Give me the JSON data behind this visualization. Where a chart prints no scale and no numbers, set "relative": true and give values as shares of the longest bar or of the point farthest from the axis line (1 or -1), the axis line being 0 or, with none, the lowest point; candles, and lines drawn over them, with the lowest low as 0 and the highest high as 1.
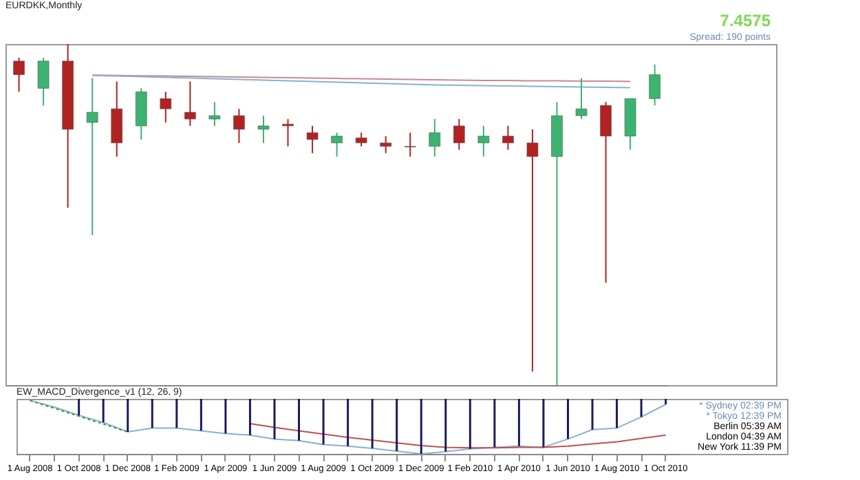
{
  "chart_data": [
    {
      "type": "candlestick",
      "title": "EURDKK,Monthly",
      "annotations": [
        "7.4575",
        "Spread: 190 points"
      ],
      "relative": true,
      "tick_labels": false,
      "categories": [
        null,
        null,
        null,
        null,
        null,
        null,
        null,
        null,
        null,
        null,
        null,
        null,
        null,
        null,
        null,
        null,
        null,
        null,
        null,
        null,
        null,
        null,
        null,
        null,
        null,
        null,
        null
      ],
      "ohlc": [
        [
          0.95,
          0.96,
          0.86,
          0.91
        ],
        [
          0.87,
          0.96,
          0.82,
          0.95
        ],
        [
          0.95,
          1,
          0.52,
          0.75
        ],
        [
          0.77,
          0.9,
          0.44,
          0.8
        ],
        [
          0.81,
          0.89,
          0.67,
          0.71
        ],
        [
          0.76,
          0.87,
          0.72,
          0.86
        ],
        [
          0.84,
          0.86,
          0.77,
          0.81
        ],
        [
          0.8,
          0.89,
          0.76,
          0.78
        ],
        [
          0.78,
          0.83,
          0.76,
          0.79
        ],
        [
          0.79,
          0.81,
          0.71,
          0.75
        ],
        [
          0.75,
          0.79,
          0.71,
          0.76
        ],
        [
          0.765,
          0.78,
          0.7,
          0.76
        ],
        [
          0.74,
          0.76,
          0.68,
          0.72
        ],
        [
          0.71,
          0.74,
          0.67,
          0.73
        ],
        [
          0.725,
          0.74,
          0.7,
          0.71
        ],
        [
          0.71,
          0.73,
          0.68,
          0.7
        ],
        [
          0.7,
          0.74,
          0.67,
          0.698
        ],
        [
          0.7,
          0.78,
          0.67,
          0.74
        ],
        [
          0.76,
          0.78,
          0.69,
          0.71
        ],
        [
          0.71,
          0.76,
          0.67,
          0.73
        ],
        [
          0.73,
          0.76,
          0.69,
          0.71
        ],
        [
          0.71,
          0.75,
          0.04,
          0.67
        ],
        [
          0.67,
          0.83,
          0,
          0.79
        ],
        [
          0.79,
          0.9,
          0.78,
          0.81
        ],
        [
          0.82,
          0.83,
          0.3,
          0.73
        ],
        [
          0.73,
          0.84,
          0.69,
          0.84
        ],
        [
          0.84,
          0.94,
          0.82,
          0.91
        ]
      ],
      "colors": [
        "#b22222",
        "#3cb371",
        "#b22222",
        "#3cb371",
        "#b22222",
        "#3cb371",
        "#b22222",
        "#b22222",
        "#3cb371",
        "#b22222",
        "#3cb371",
        "#b22222",
        "#b22222",
        "#3cb371",
        "#b22222",
        "#b22222",
        "#b22222",
        "#3cb371",
        "#b22222",
        "#3cb371",
        "#b22222",
        "#b22222",
        "#3cb371",
        "#3cb371",
        "#b22222",
        "#3cb371",
        "#3cb371"
      ],
      "series": [
        {
          "type": "line",
          "color": "#c98a8e",
          "values": [
            null,
            null,
            null,
            0.909,
            0.908,
            0.907,
            0.906,
            0.905,
            0.904,
            0.903,
            0.902,
            0.901,
            0.9,
            0.899,
            0.898,
            0.897,
            0.896,
            0.895,
            0.894,
            0.893,
            0.893,
            0.892,
            0.892,
            0.891,
            0.891,
            0.89,
            null
          ]
        },
        {
          "type": "line",
          "color": "#8ab0d0",
          "values": [
            null,
            null,
            null,
            0.908,
            0.906,
            0.904,
            0.902,
            0.9,
            0.898,
            0.896,
            0.894,
            0.892,
            0.89,
            0.888,
            0.886,
            0.884,
            0.882,
            0.88,
            0.879,
            0.878,
            0.877,
            0.876,
            0.875,
            0.874,
            0.873,
            0.872,
            null
          ]
        }
      ]
    },
    {
      "type": "bar",
      "title": "EW_MACD_Divergence_v1 (12, 26, 9)",
      "annotations": [
        "* Sydney 02:39 PM",
        "* Tokyo 12:39 PM",
        "Berlin 05:39 AM",
        "London 04:39 AM",
        "New York 11:39 PM"
      ],
      "relative": true,
      "tick_labels": "x",
      "categories": [
        "1 Aug 2008",
        null,
        "1 Oct 2008",
        null,
        "1 Dec 2008",
        null,
        "1 Feb 2009",
        null,
        "1 Apr 2009",
        null,
        "1 Jun 2009",
        null,
        "1 Aug 2009",
        null,
        "1 Oct 2009",
        null,
        "1 Dec 2009",
        null,
        "1 Feb 2010",
        null,
        "1 Apr 2010",
        null,
        "1 Jun 2010",
        null,
        "1 Aug 2010",
        null,
        "1 Oct 2010"
      ],
      "series": [
        {
          "type": "bar",
          "color": "#1a1a5e",
          "values": [
            null,
            null,
            -0.3,
            -0.43,
            -0.6,
            -0.53,
            -0.53,
            -0.58,
            -0.63,
            -0.66,
            -0.73,
            -0.76,
            -0.83,
            -0.86,
            -0.9,
            -0.95,
            -1,
            -0.96,
            -0.91,
            -0.88,
            -0.86,
            -0.88,
            -0.73,
            -0.56,
            -0.53,
            -0.33,
            -0.1
          ]
        },
        {
          "type": "line",
          "color": "#8ab0d0",
          "values": [
            -0.03,
            -0.15,
            -0.3,
            -0.43,
            -0.6,
            -0.53,
            -0.53,
            -0.58,
            -0.63,
            -0.66,
            -0.73,
            -0.76,
            -0.83,
            -0.86,
            -0.9,
            -0.95,
            -1,
            -0.96,
            -0.91,
            -0.88,
            -0.86,
            -0.88,
            -0.73,
            -0.56,
            -0.53,
            -0.33,
            -0.1
          ]
        },
        {
          "type": "line",
          "color": "#c0504d",
          "values": [
            null,
            null,
            null,
            null,
            null,
            null,
            null,
            null,
            null,
            -0.45,
            -0.52,
            -0.58,
            -0.64,
            -0.7,
            -0.75,
            -0.8,
            -0.85,
            -0.88,
            -0.89,
            -0.89,
            -0.88,
            -0.88,
            -0.86,
            -0.82,
            -0.78,
            -0.72,
            -0.66
          ]
        },
        {
          "type": "line",
          "color": "#3a9a3a",
          "line_style": "dotted",
          "x": [
            "1 Aug 2008",
            "1 Dec 2008"
          ],
          "values": [
            -0.03,
            -0.6
          ]
        }
      ]
    }
  ]
}
